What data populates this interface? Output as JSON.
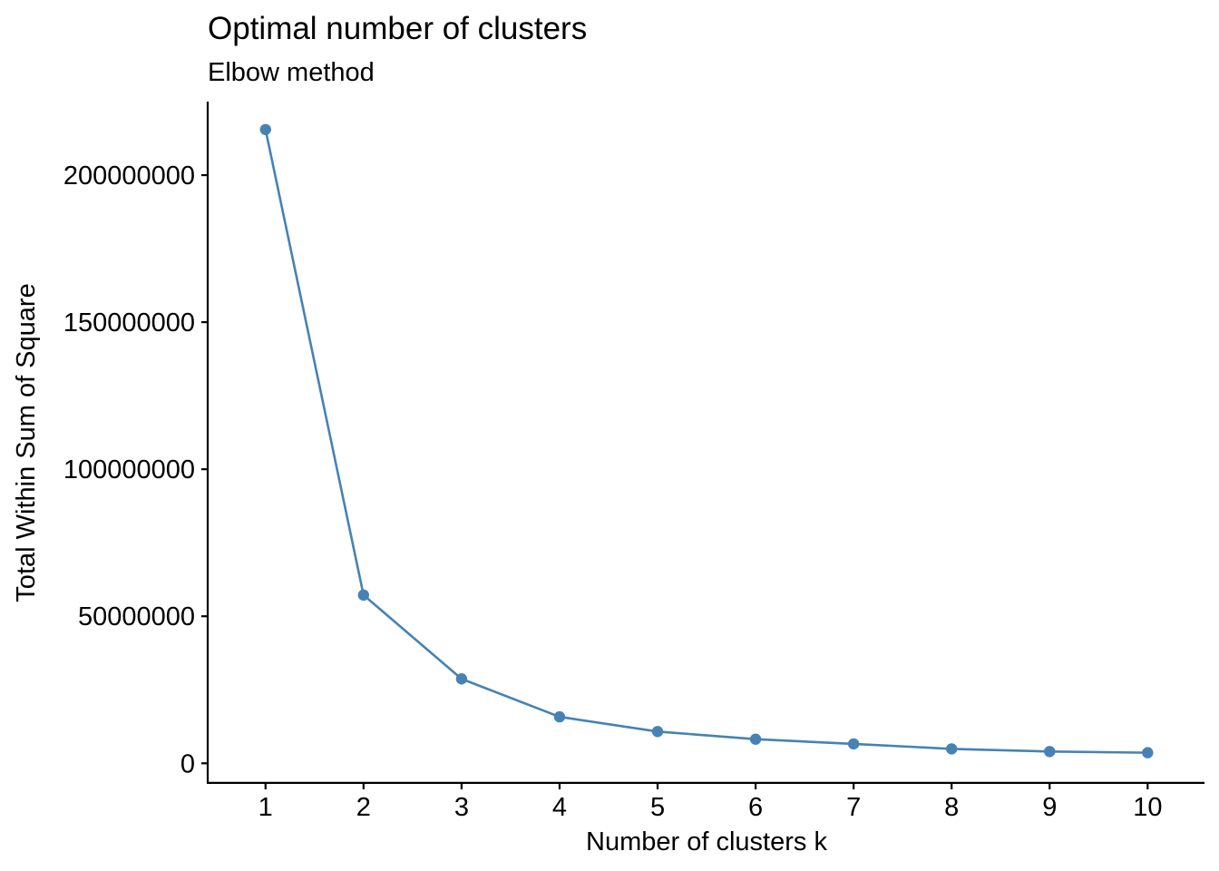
{
  "chart_data": {
    "type": "line",
    "title": "Optimal number of clusters",
    "subtitle": "Elbow method",
    "xlabel": "Number of clusters k",
    "ylabel": "Total Within Sum of Square",
    "x": [
      1,
      2,
      3,
      4,
      5,
      6,
      7,
      8,
      9,
      10
    ],
    "x_tick_labels": [
      "1",
      "2",
      "3",
      "4",
      "5",
      "6",
      "7",
      "8",
      "9",
      "10"
    ],
    "y_ticks": [
      0,
      50000000,
      100000000,
      150000000,
      200000000
    ],
    "y_tick_labels": [
      "0",
      "50000000",
      "100000000",
      "150000000",
      "200000000"
    ],
    "series": [
      {
        "values": [
          215500000,
          57200000,
          28700000,
          15800000,
          10800000,
          8200000,
          6600000,
          4900000,
          4000000,
          3600000
        ],
        "color": "#4682B4"
      }
    ],
    "xlim": [
      0.41,
      10.58
    ],
    "ylim": [
      -6700000,
      225000000
    ],
    "grid": false,
    "legend": "none"
  }
}
